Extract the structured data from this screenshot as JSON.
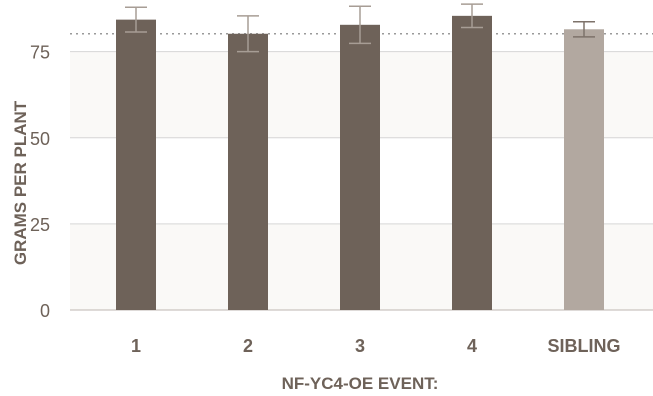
{
  "chart_data": {
    "type": "bar",
    "categories": [
      "1",
      "2",
      "3",
      "4",
      "SIBLING"
    ],
    "values": [
      84.3,
      80.2,
      82.8,
      85.4,
      81.5
    ],
    "error": [
      3.6,
      5.2,
      5.4,
      3.4,
      2.2
    ],
    "reference_line": 80.2,
    "title": "",
    "xlabel": "NF-YC4-OE EVENT:",
    "ylabel": "GRAMS PER PLANT",
    "ylim": [
      0,
      90
    ],
    "yticks": [
      0,
      25,
      50,
      75
    ],
    "grid": true,
    "colors": {
      "event_bar": "#6e6259",
      "sibling_bar": "#b2a8a0",
      "error_bar": "#a79d95",
      "reference_line": "#9a9a9a",
      "gridline": "#d6d6d6",
      "band_shade": "#faf9f7",
      "text": "#6e6259"
    }
  }
}
